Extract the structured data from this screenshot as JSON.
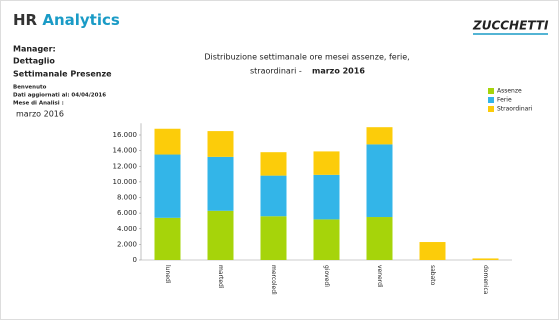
{
  "header": {
    "title_part1": "HR",
    "title_part2": "Analytics",
    "logo": "ZUCCHETTI"
  },
  "sidebar": {
    "manager": "Manager:",
    "line1": "Dettaglio",
    "line2": "Settimanale Presenze",
    "welcome": "Benvenuto",
    "updated": "Dati aggiornati al: 04/04/2016",
    "month_label": "Mese di Analisi :",
    "month": "marzo 2016"
  },
  "chart_data": {
    "type": "stacked_bar",
    "title": "Distribuzione settimanale ore mesei assenze, ferie,",
    "title_line2": "straordinari -",
    "subtitle": "marzo 2016",
    "categories": [
      "lunedì",
      "martedì",
      "mercoledì",
      "giovedì",
      "venerdì",
      "sabato",
      "domenica"
    ],
    "series": [
      {
        "name": "Assenze",
        "color": "#a6d40a",
        "values": [
          5400,
          6300,
          5600,
          5200,
          5500,
          0,
          0
        ]
      },
      {
        "name": "Ferie",
        "color": "#33b5e8",
        "values": [
          8100,
          6900,
          5200,
          5700,
          9300,
          0,
          0
        ]
      },
      {
        "name": "Straordinari",
        "color": "#fccc0a",
        "values": [
          3300,
          3300,
          3000,
          3000,
          2200,
          2300,
          200
        ]
      }
    ],
    "ylim": [
      0,
      17500
    ],
    "yticks": [
      0,
      {
        "value": 2000,
        "label": "2.000"
      },
      {
        "value": 4000,
        "label": "4.000"
      },
      {
        "value": 6000,
        "label": "6.000"
      },
      {
        "value": 8000,
        "label": "8.000"
      },
      {
        "value": 10000,
        "label": "10.000"
      },
      {
        "value": 12000,
        "label": "12.000"
      },
      {
        "value": 14000,
        "label": "14.000"
      },
      {
        "value": 16000,
        "label": "16.000"
      }
    ],
    "legend": "top-right"
  }
}
